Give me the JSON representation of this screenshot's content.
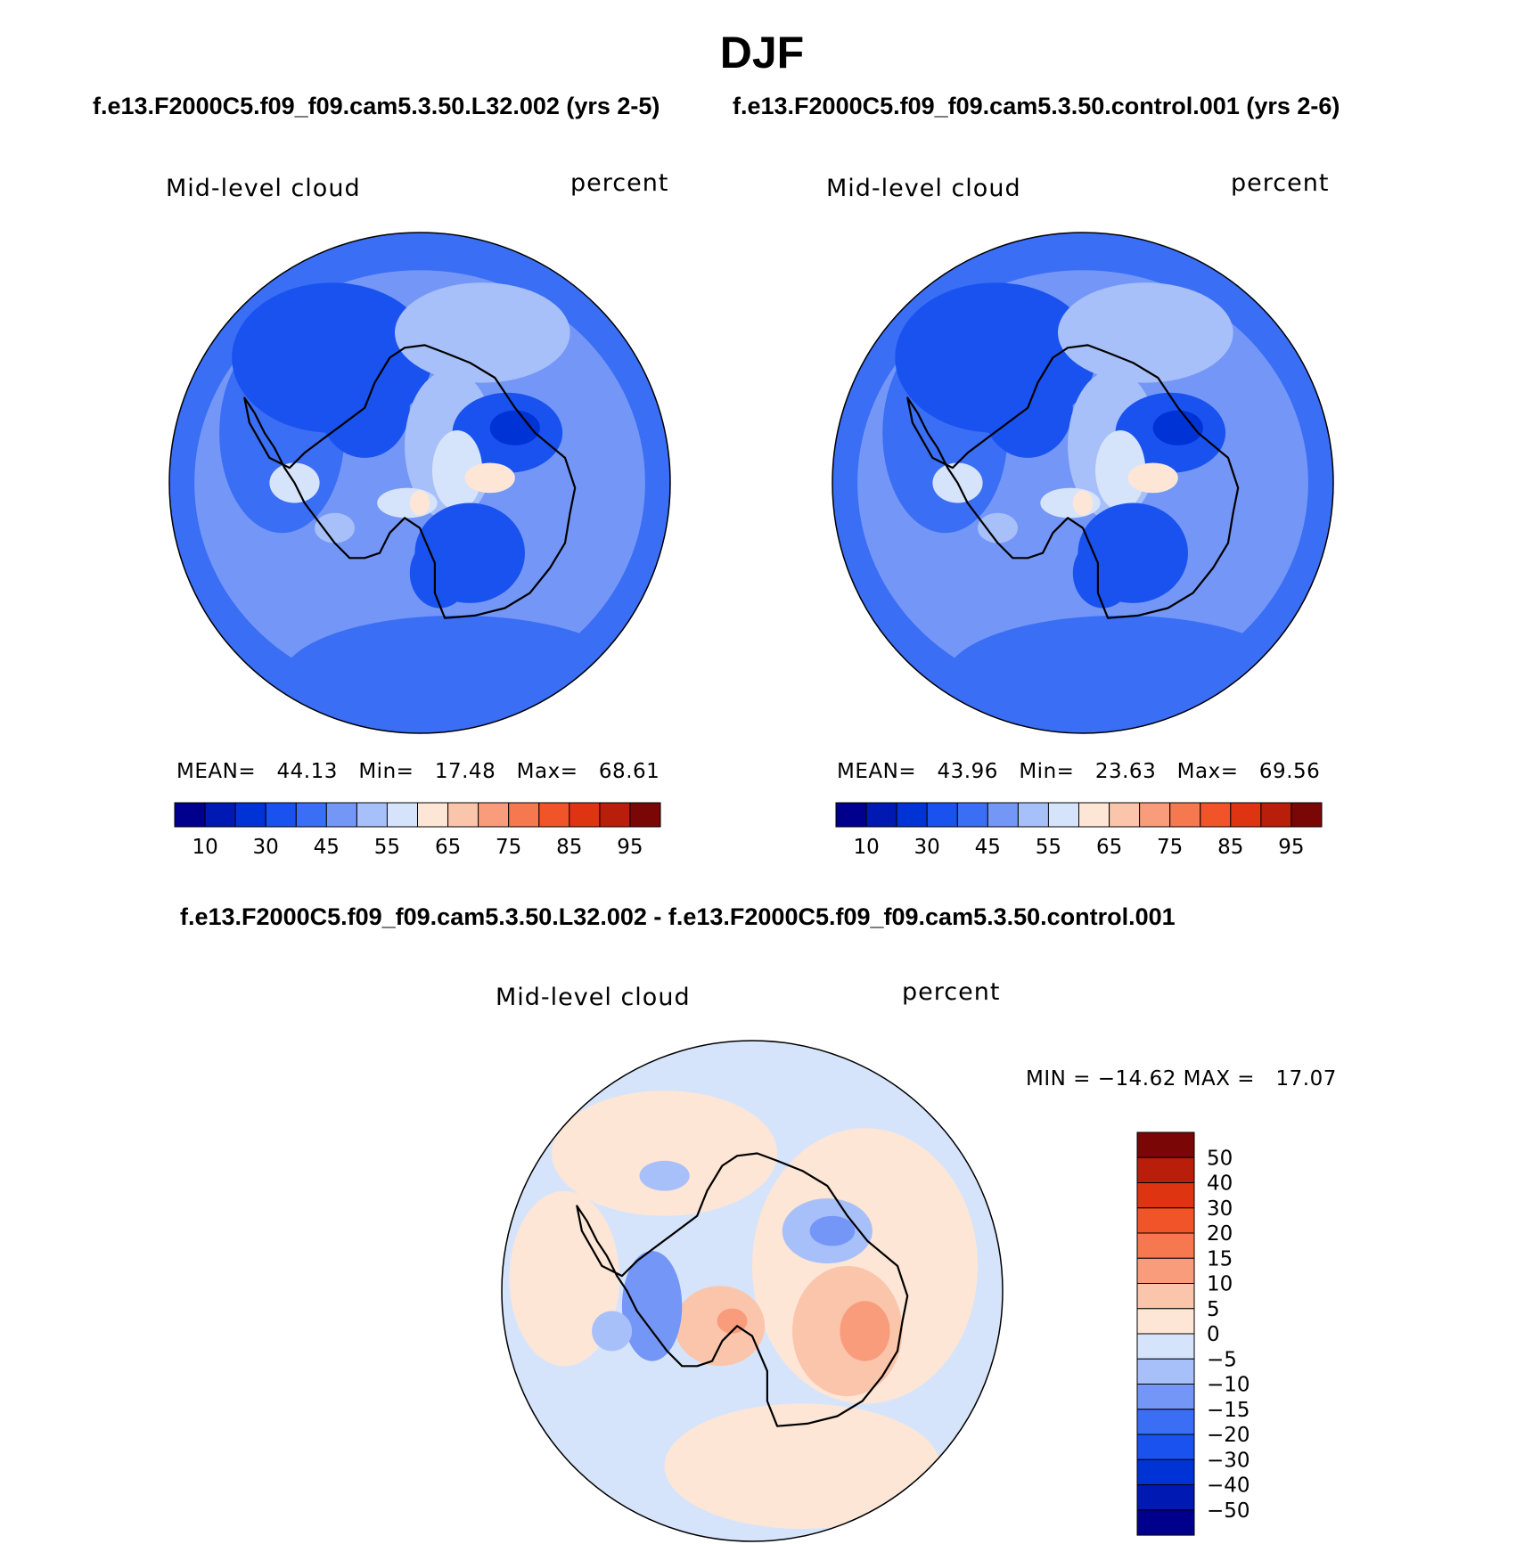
{
  "title": "DJF",
  "panels": [
    {
      "subtitle": "f.e13.F2000C5.f09_f09.cam5.3.50.L32.002 (yrs 2-5)",
      "variable": "Mid-level cloud",
      "units": "percent",
      "stats": {
        "mean_label": "MEAN=",
        "mean": "44.13",
        "min_label": "Min=",
        "min": "17.48",
        "max_label": "Max=",
        "max": "68.61"
      }
    },
    {
      "subtitle": "f.e13.F2000C5.f09_f09.cam5.3.50.control.001 (yrs 2-6)",
      "variable": "Mid-level cloud",
      "units": "percent",
      "stats": {
        "mean_label": "MEAN=",
        "mean": "43.96",
        "min_label": "Min=",
        "min": "23.63",
        "max_label": "Max=",
        "max": "69.56"
      }
    },
    {
      "subtitle": "f.e13.F2000C5.f09_f09.cam5.3.50.L32.002 - f.e13.F2000C5.f09_f09.cam5.3.50.control.001",
      "variable": "Mid-level cloud",
      "units": "percent",
      "minmax": "MIN = −14.62 MAX =   17.07"
    }
  ],
  "chart_data": [
    {
      "type": "heatmap",
      "projection": "south-polar-stereographic",
      "title": "f.e13.F2000C5.f09_f09.cam5.3.50.L32.002 (yrs 2-5)",
      "variable": "Mid-level cloud",
      "units": "percent",
      "mean": 44.13,
      "min": 17.48,
      "max": 68.61,
      "colorbar": {
        "orientation": "horizontal",
        "levels": [
          10,
          20,
          30,
          40,
          45,
          50,
          55,
          60,
          65,
          70,
          75,
          80,
          85,
          90,
          95
        ],
        "tick_labels": [
          "10",
          "30",
          "45",
          "55",
          "65",
          "75",
          "85",
          "95"
        ],
        "colors": [
          "#00008c",
          "#0019b3",
          "#0033d6",
          "#1a52f0",
          "#3a6ef5",
          "#7497f7",
          "#a8c0f9",
          "#d6e4fb",
          "#fde6d6",
          "#fbc5ab",
          "#f89c7c",
          "#f6784e",
          "#f2542a",
          "#de3412",
          "#b81e0a",
          "#7a0606"
        ]
      }
    },
    {
      "type": "heatmap",
      "projection": "south-polar-stereographic",
      "title": "f.e13.F2000C5.f09_f09.cam5.3.50.control.001 (yrs 2-6)",
      "variable": "Mid-level cloud",
      "units": "percent",
      "mean": 43.96,
      "min": 23.63,
      "max": 69.56,
      "colorbar": {
        "orientation": "horizontal",
        "levels": [
          10,
          20,
          30,
          40,
          45,
          50,
          55,
          60,
          65,
          70,
          75,
          80,
          85,
          90,
          95
        ],
        "tick_labels": [
          "10",
          "30",
          "45",
          "55",
          "65",
          "75",
          "85",
          "95"
        ],
        "colors": [
          "#00008c",
          "#0019b3",
          "#0033d6",
          "#1a52f0",
          "#3a6ef5",
          "#7497f7",
          "#a8c0f9",
          "#d6e4fb",
          "#fde6d6",
          "#fbc5ab",
          "#f89c7c",
          "#f6784e",
          "#f2542a",
          "#de3412",
          "#b81e0a",
          "#7a0606"
        ]
      }
    },
    {
      "type": "heatmap",
      "projection": "south-polar-stereographic",
      "title": "f.e13.F2000C5.f09_f09.cam5.3.50.L32.002 - f.e13.F2000C5.f09_f09.cam5.3.50.control.001",
      "variable": "Mid-level cloud",
      "units": "percent",
      "min": -14.62,
      "max": 17.07,
      "colorbar": {
        "orientation": "vertical",
        "levels": [
          -50,
          -40,
          -30,
          -20,
          -15,
          -10,
          -5,
          0,
          5,
          10,
          15,
          20,
          30,
          40,
          50
        ],
        "tick_labels": [
          "50",
          "40",
          "30",
          "20",
          "15",
          "10",
          "5",
          "0",
          "−5",
          "−10",
          "−15",
          "−20",
          "−30",
          "−40",
          "−50"
        ],
        "colors": [
          "#00008c",
          "#0019b3",
          "#0033d6",
          "#1a52f0",
          "#3a6ef5",
          "#7497f7",
          "#a8c0f9",
          "#d6e4fb",
          "#fde6d6",
          "#fbc5ab",
          "#f89c7c",
          "#f6784e",
          "#f2542a",
          "#de3412",
          "#b81e0a",
          "#7a0606"
        ]
      }
    }
  ]
}
